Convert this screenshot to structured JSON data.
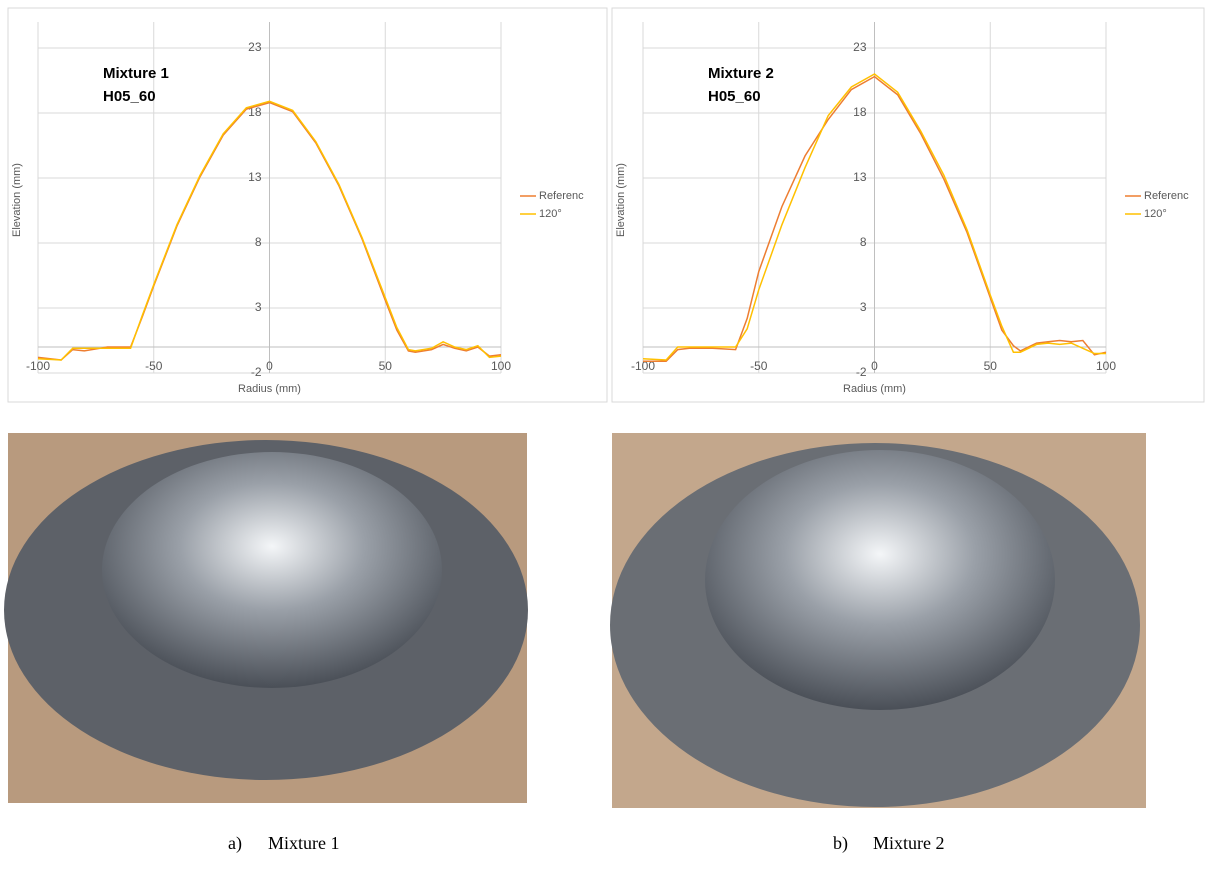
{
  "chart_data": [
    {
      "type": "line",
      "annotation": [
        "Mixture 1",
        "H05_60"
      ],
      "x_label": "Radius (mm)",
      "y_label": "Elevation (mm)",
      "x": [
        -100,
        -90,
        -85,
        -80,
        -70,
        -60,
        -55,
        -50,
        -40,
        -30,
        -20,
        -10,
        0,
        10,
        20,
        30,
        40,
        50,
        55,
        60,
        63,
        70,
        75,
        80,
        85,
        90,
        95,
        100
      ],
      "series": [
        {
          "name": "Referenc",
          "color": "#ed7d31",
          "values": [
            -0.8,
            -1.0,
            -0.2,
            -0.3,
            0.0,
            0.0,
            2.3,
            4.7,
            9.3,
            13.1,
            16.3,
            18.3,
            18.8,
            18.1,
            15.7,
            12.4,
            8.3,
            3.6,
            1.3,
            -0.3,
            -0.4,
            -0.2,
            0.2,
            -0.1,
            -0.3,
            0.0,
            -0.7,
            -0.6
          ]
        },
        {
          "name": "120°",
          "color": "#ffc000",
          "values": [
            -0.9,
            -1.0,
            -0.1,
            -0.1,
            -0.1,
            -0.1,
            2.4,
            4.8,
            9.4,
            13.2,
            16.4,
            18.4,
            18.9,
            18.2,
            15.8,
            12.5,
            8.4,
            3.8,
            1.5,
            -0.2,
            -0.3,
            -0.1,
            0.4,
            0.0,
            -0.2,
            0.1,
            -0.8,
            -0.7
          ]
        }
      ],
      "xlim": [
        -100,
        100
      ],
      "xticks": [
        -100,
        -50,
        0,
        50,
        100
      ],
      "ylim": [
        -2,
        25
      ],
      "yticks": [
        -2,
        3,
        8,
        13,
        18,
        23
      ],
      "grid": true,
      "legend": "right"
    },
    {
      "type": "line",
      "annotation": [
        "Mixture 2",
        "H05_60"
      ],
      "x_label": "Radius (mm)",
      "y_label": "Elevation (mm)",
      "x": [
        -100,
        -90,
        -85,
        -80,
        -70,
        -60,
        -55,
        -50,
        -40,
        -30,
        -20,
        -10,
        0,
        10,
        20,
        30,
        40,
        50,
        55,
        60,
        63,
        70,
        75,
        80,
        85,
        90,
        95,
        100
      ],
      "series": [
        {
          "name": "Referenc",
          "color": "#ed7d31",
          "values": [
            -1.1,
            -1.1,
            -0.2,
            -0.1,
            -0.1,
            -0.2,
            2.2,
            5.8,
            10.8,
            14.7,
            17.5,
            19.8,
            20.8,
            19.4,
            16.4,
            12.9,
            8.8,
            3.8,
            1.3,
            0.1,
            -0.3,
            0.3,
            0.4,
            0.5,
            0.4,
            0.5,
            -0.6,
            -0.4
          ]
        },
        {
          "name": "120°",
          "color": "#ffc000",
          "values": [
            -0.9,
            -1.0,
            0.0,
            0.0,
            0.0,
            0.0,
            1.4,
            4.4,
            9.4,
            13.8,
            17.8,
            20.0,
            21.0,
            19.6,
            16.6,
            13.2,
            9.0,
            4.0,
            1.6,
            -0.4,
            -0.4,
            0.2,
            0.3,
            0.2,
            0.3,
            -0.1,
            -0.5,
            -0.5
          ]
        }
      ],
      "xlim": [
        -100,
        100
      ],
      "xticks": [
        -100,
        -50,
        0,
        50,
        100
      ],
      "ylim": [
        -2,
        25
      ],
      "yticks": [
        -2,
        3,
        8,
        13,
        18,
        23
      ],
      "grid": true,
      "legend": "right"
    }
  ],
  "captions": [
    {
      "letter": "a)",
      "text": "Mixture 1"
    },
    {
      "letter": "b)",
      "text": "Mixture 2"
    }
  ]
}
